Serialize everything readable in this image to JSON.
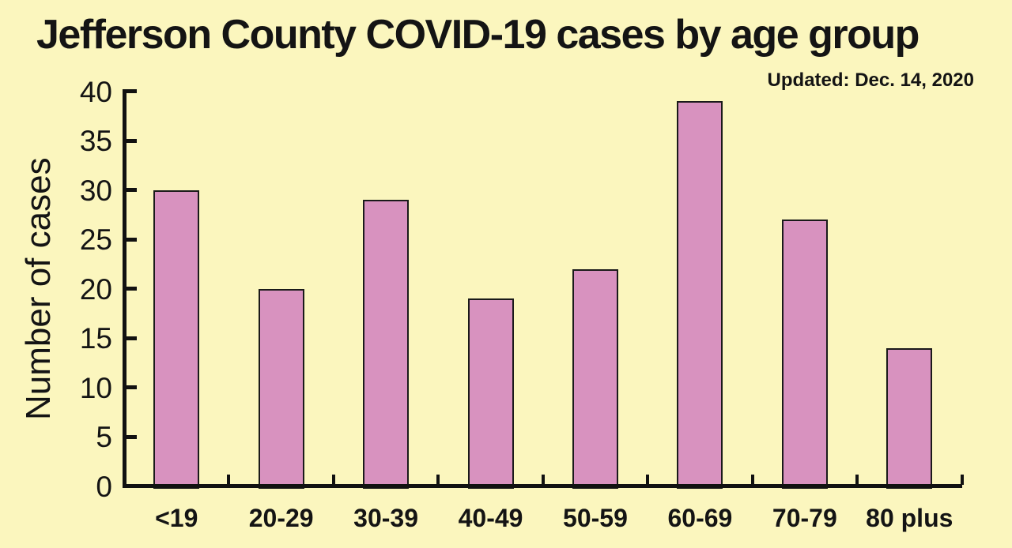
{
  "chart_data": {
    "type": "bar",
    "title": "Jefferson County COVID-19 cases by age group",
    "subtitle": "Updated: Dec. 14, 2020",
    "categories": [
      "<19",
      "20-29",
      "30-39",
      "40-49",
      "50-59",
      "60-69",
      "70-79",
      "80 plus"
    ],
    "values": [
      30,
      20,
      29,
      19,
      22,
      39,
      27,
      14
    ],
    "xlabel": "",
    "ylabel": "Number of cases",
    "ylim": [
      0,
      40
    ],
    "yticks": [
      0,
      5,
      10,
      15,
      20,
      25,
      30,
      35,
      40
    ],
    "grid": false,
    "legend": "none",
    "colors": {
      "background": "#FBF6BE",
      "bar_fill": "#D892BF",
      "bar_outline": "#1a1a1a",
      "axis": "#111111",
      "text": "#141414"
    }
  }
}
